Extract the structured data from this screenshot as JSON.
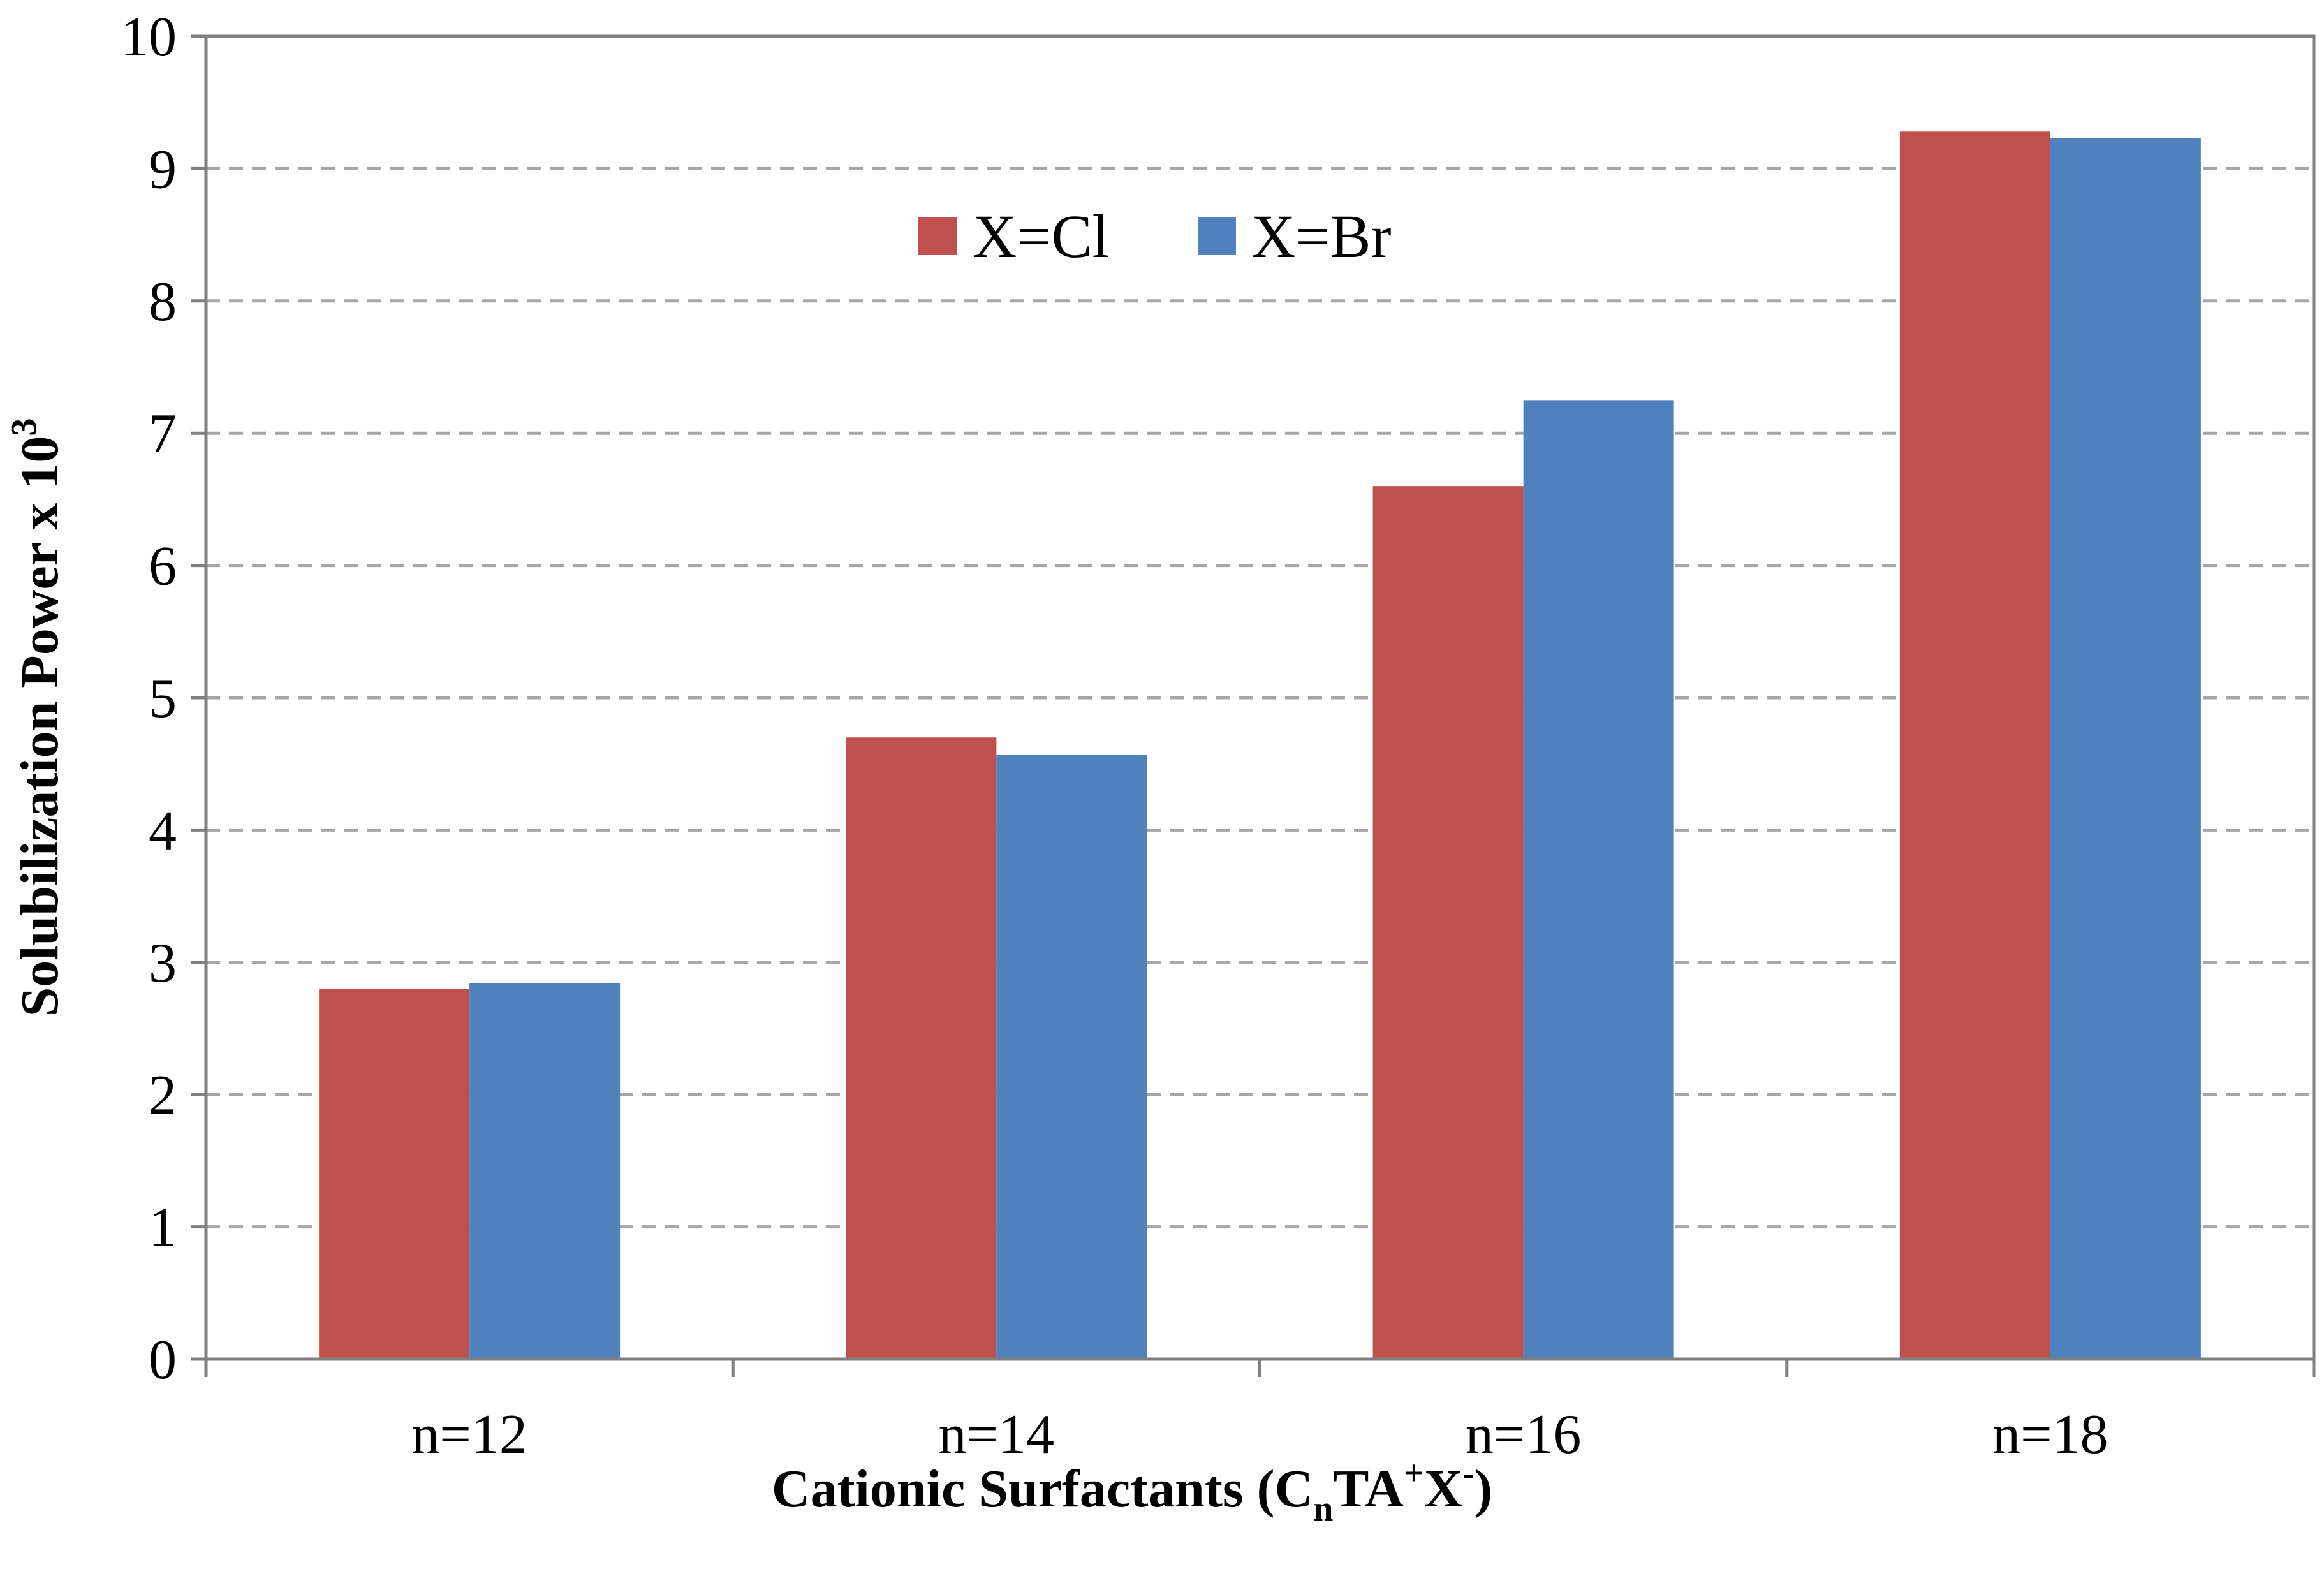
{
  "chart_data": {
    "type": "bar",
    "title": "",
    "categories": [
      "n=12",
      "n=14",
      "n=16",
      "n=18"
    ],
    "series": [
      {
        "name": "X=Cl",
        "color": "#C0504D",
        "values": [
          2.8,
          4.7,
          6.6,
          9.28
        ]
      },
      {
        "name": "X=Br",
        "color": "#4F81BD",
        "values": [
          2.84,
          4.57,
          7.25,
          9.23
        ]
      }
    ],
    "ylim": [
      0,
      10
    ],
    "yticks": [
      0,
      1,
      2,
      3,
      4,
      5,
      6,
      7,
      8,
      9,
      10
    ],
    "grid": true,
    "legend_position": "top-left",
    "xlabel": {
      "main": "Cationic Surfactants (C",
      "sub": "n",
      "mid": "TA",
      "sup1": "+",
      "mid2": "X",
      "sup2": "-",
      "end": ")"
    },
    "ylabel": {
      "main": "Solubilization Power x 10",
      "sup": "3"
    }
  }
}
